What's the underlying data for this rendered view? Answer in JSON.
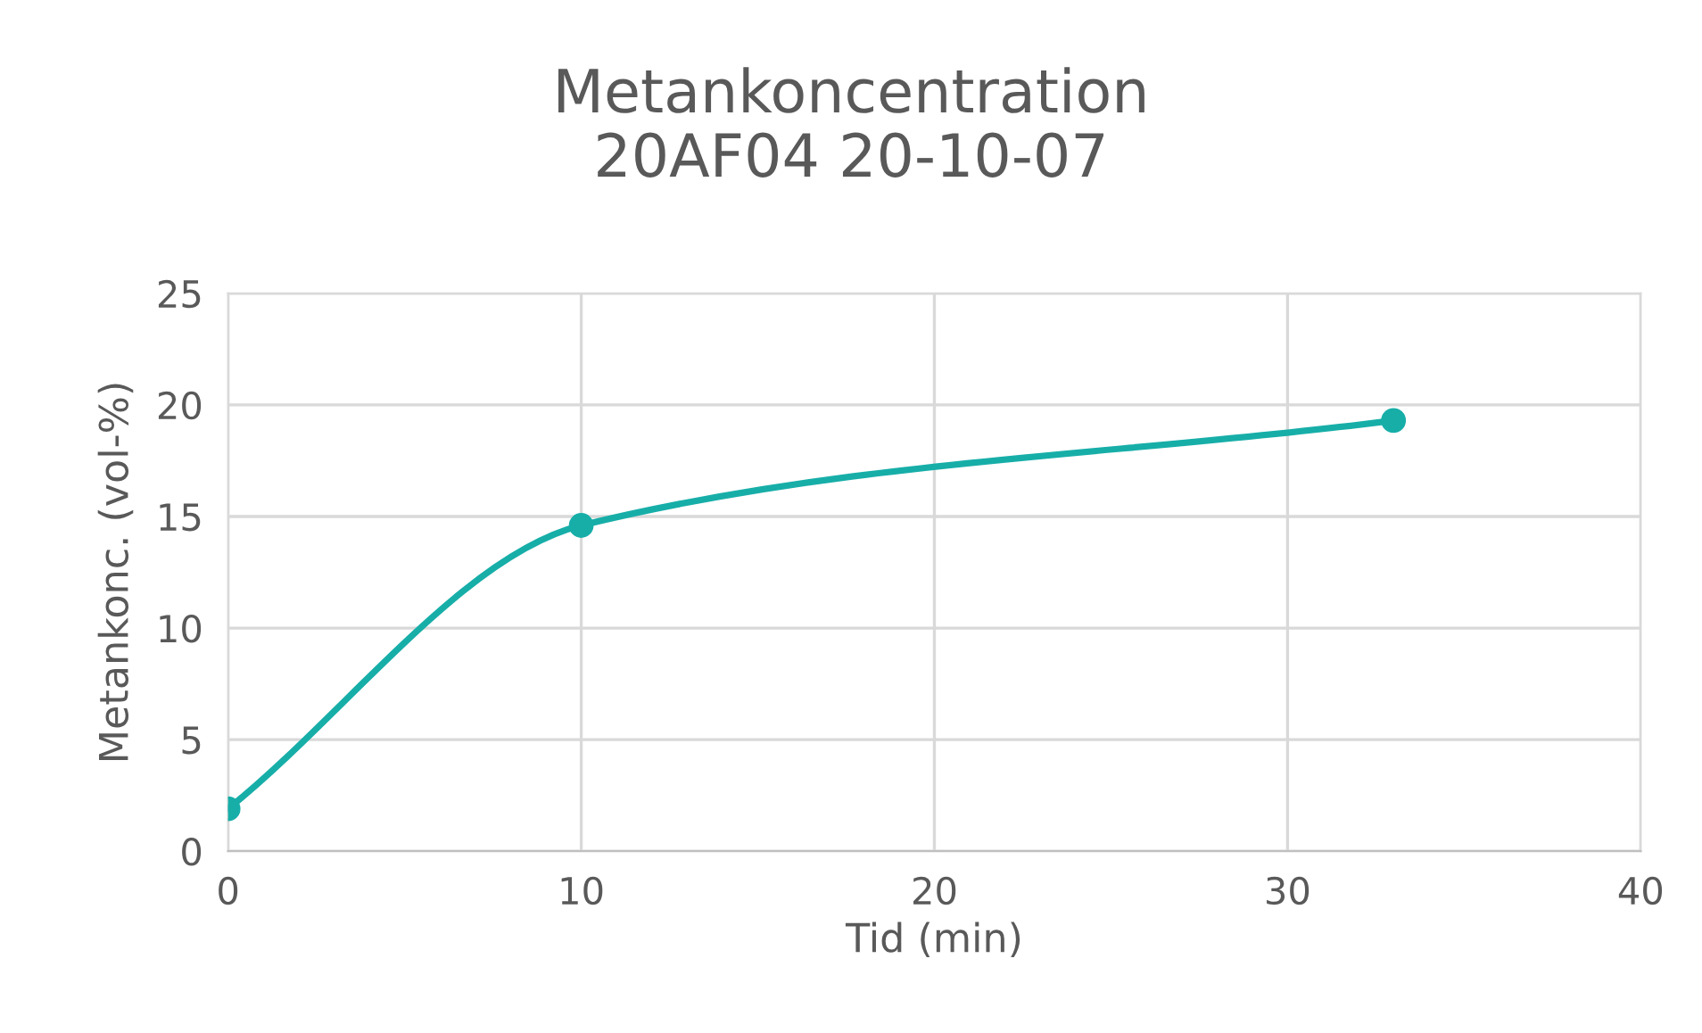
{
  "chart_data": {
    "type": "line",
    "title": "Metankoncentration\n20AF04 20-10-07",
    "xlabel": "Tid (min)",
    "ylabel": "Metankonc. (vol-%)",
    "x": [
      0,
      10,
      33
    ],
    "series": [
      {
        "color": "#17aea8",
        "values": [
          1.9,
          14.6,
          19.3
        ]
      }
    ],
    "xlim": [
      0,
      40
    ],
    "xticks": [
      0,
      10,
      20,
      30,
      40
    ],
    "ylim": [
      0,
      25
    ],
    "yticks": [
      0,
      5,
      10,
      15,
      20,
      25
    ],
    "grid": true,
    "marker": "circle",
    "line_style": "solid",
    "legend": false
  }
}
